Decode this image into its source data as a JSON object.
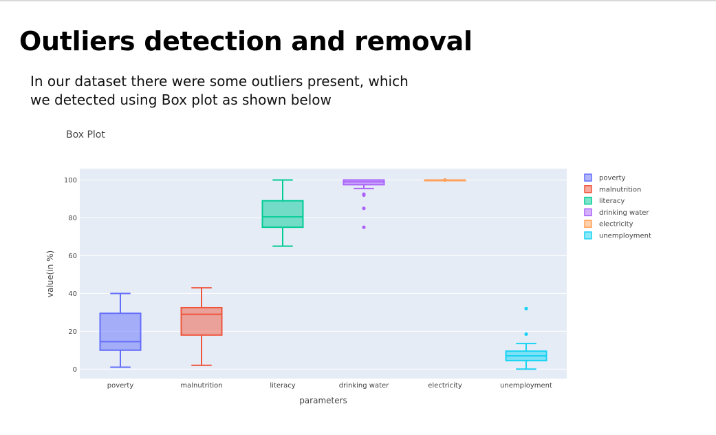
{
  "page": {
    "title": "Outliers detection and removal",
    "intro": "In our dataset there were some outliers present, which we detected using Box plot as shown below"
  },
  "chart_data": {
    "type": "box",
    "title": "Box Plot",
    "xlabel": "parameters",
    "ylabel": "value(in %)",
    "ylim": [
      -5,
      106
    ],
    "yticks": [
      0,
      20,
      40,
      60,
      80,
      100
    ],
    "grid": true,
    "legend_position": "top-right",
    "categories": [
      "poverty",
      "malnutrition",
      "literacy",
      "drinking water",
      "electricity",
      "unemployment"
    ],
    "series": [
      {
        "name": "poverty",
        "color": "#636efa",
        "min": 1,
        "q1": 10,
        "median": 14.5,
        "q3": 29.5,
        "max": 40,
        "outliers": []
      },
      {
        "name": "malnutrition",
        "color": "#ef553b",
        "min": 2,
        "q1": 18,
        "median": 29,
        "q3": 32.5,
        "max": 43,
        "outliers": []
      },
      {
        "name": "literacy",
        "color": "#00cc96",
        "min": 65,
        "q1": 75,
        "median": 80.5,
        "q3": 89,
        "max": 100,
        "outliers": []
      },
      {
        "name": "drinking water",
        "color": "#ab63fa",
        "min": 95.5,
        "q1": 97.5,
        "median": 99,
        "q3": 100,
        "max": 100,
        "outliers": [
          92.5,
          92,
          85,
          75
        ]
      },
      {
        "name": "electricity",
        "color": "#ffa15a",
        "min": 100,
        "q1": 100,
        "median": 100,
        "q3": 100,
        "max": 100,
        "outliers": [
          100
        ]
      },
      {
        "name": "unemployment",
        "color": "#19d3f3",
        "min": 0,
        "q1": 4.5,
        "median": 7,
        "q3": 9.5,
        "max": 13.5,
        "outliers": [
          18.5,
          32
        ]
      }
    ]
  }
}
